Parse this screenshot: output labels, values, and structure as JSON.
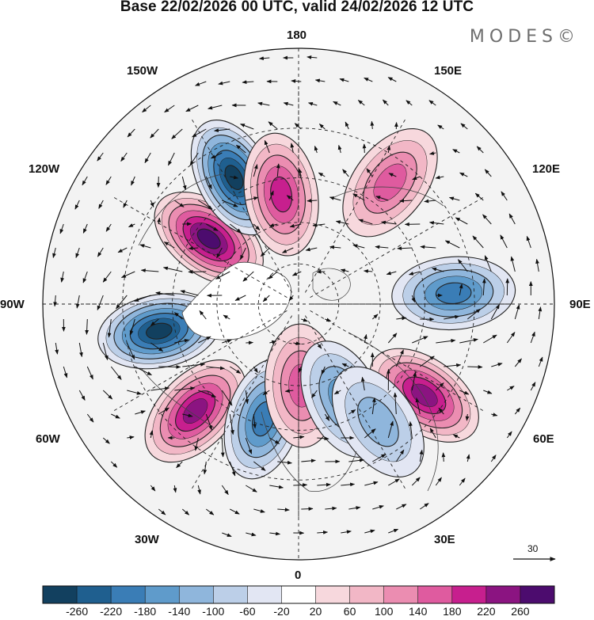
{
  "title": "Base 22/02/2026 00 UTC, valid 24/02/2026 12 UTC",
  "brand": "MODES©",
  "map": {
    "projection": "north-polar-stereographic",
    "longitude_labels": {
      "top": "180",
      "bottom": "0",
      "left": "90W",
      "right": "90E",
      "upper_left": "150W",
      "upper_left_2": "120W",
      "upper_right": "150E",
      "upper_right_2": "120E",
      "lower_left": "60W",
      "lower_left_2": "30W",
      "lower_right": "60E",
      "lower_right_2": "30E"
    },
    "reference_vector_label": "30",
    "anomaly_centers": [
      {
        "name": "positive-center-120w",
        "lon": -126,
        "lat": 50,
        "value": 260
      },
      {
        "name": "negative-center-150w",
        "lon": -153,
        "lat": 40,
        "value": -260
      },
      {
        "name": "negative-center-90w",
        "lon": -79,
        "lat": 40,
        "value": -260
      },
      {
        "name": "positive-center-60w",
        "lon": -44,
        "lat": 38,
        "value": 250
      },
      {
        "name": "negative-center-45w",
        "lon": -17,
        "lat": 47,
        "value": -200
      },
      {
        "name": "positive-center-10w",
        "lon": 2,
        "lat": 60,
        "value": 160
      },
      {
        "name": "positive-center-170w",
        "lon": -171,
        "lat": 50,
        "value": 180
      },
      {
        "name": "negative-center-90e",
        "lon": 94,
        "lat": 36,
        "value": -210
      },
      {
        "name": "positive-center-60e",
        "lon": 54,
        "lat": 36,
        "value": 240
      },
      {
        "name": "positive-center-140e",
        "lon": 143,
        "lat": 37,
        "value": 140
      },
      {
        "name": "negative-center-20e",
        "lon": 25,
        "lat": 52,
        "value": -140
      },
      {
        "name": "negative-center-30e",
        "lon": 34,
        "lat": 40,
        "value": -120
      }
    ]
  },
  "colorbar": {
    "ticks": [
      "-260",
      "-220",
      "-180",
      "-140",
      "-100",
      "-60",
      "-20",
      "20",
      "60",
      "100",
      "140",
      "180",
      "220",
      "260"
    ],
    "colors": [
      "#12405f",
      "#1f5f8f",
      "#3a7db6",
      "#5f9bcb",
      "#8fb6dc",
      "#bccfe8",
      "#e2e6f3",
      "#ffffff",
      "#f7d8dd",
      "#f2b7c6",
      "#eb8db1",
      "#df5b9f",
      "#c71f8e",
      "#8b1481",
      "#4c0c6e"
    ]
  }
}
